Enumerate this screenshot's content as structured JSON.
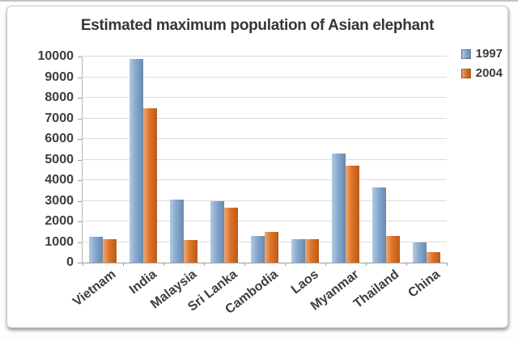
{
  "window": {
    "background_color": "#ffffff",
    "card_border_color": "#c8c8c8"
  },
  "chart_data": {
    "type": "bar",
    "title": "Estimated maximum population of Asian elephant",
    "xlabel": "",
    "ylabel": "",
    "categories": [
      "Vietnam",
      "India",
      "Malaysia",
      "Sri Lanka",
      "Cambodia",
      "Laos",
      "Myanmar",
      "Thailand",
      "China"
    ],
    "series": [
      {
        "name": "1997",
        "color": "#7ea4cc",
        "values": [
          1250,
          9900,
          3050,
          3000,
          1300,
          1150,
          5300,
          3650,
          1000
        ]
      },
      {
        "name": "2004",
        "color": "#dd6c1c",
        "values": [
          1150,
          7500,
          1100,
          2650,
          1500,
          1150,
          4700,
          1300,
          500
        ]
      }
    ],
    "ylim": [
      0,
      10000
    ],
    "ytick_step": 1000,
    "yticks": [
      "0",
      "1000",
      "2000",
      "3000",
      "4000",
      "5000",
      "6000",
      "7000",
      "8000",
      "9000",
      "10000"
    ],
    "grid": "horizontal",
    "legend_position": "top-right",
    "legend_labels": [
      "1997",
      "2004"
    ]
  }
}
